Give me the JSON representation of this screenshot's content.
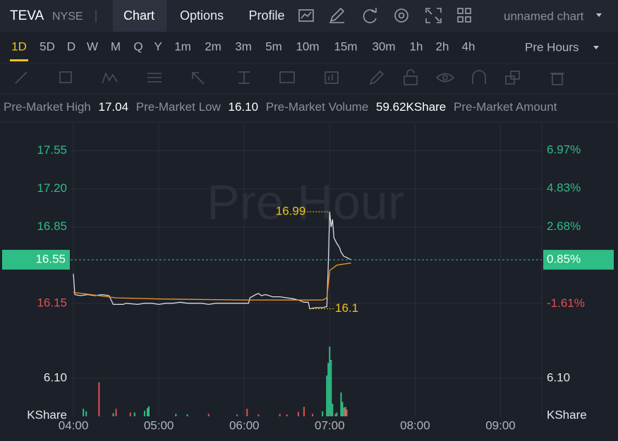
{
  "header": {
    "symbol": "TEVA",
    "exchange": "NYSE",
    "tabs": [
      "Chart",
      "Options",
      "Profile"
    ],
    "chart_name": "unnamed chart"
  },
  "periods": [
    "1D",
    "5D",
    "D",
    "W",
    "M",
    "Q",
    "Y",
    "1m",
    "2m",
    "3m",
    "5m",
    "10m",
    "15m",
    "30m",
    "1h",
    "2h",
    "4h"
  ],
  "session": "Pre Hours",
  "stats": [
    {
      "label": "Pre-Market High",
      "value": "17.04"
    },
    {
      "label": "Pre-Market Low",
      "value": "16.10"
    },
    {
      "label": "Pre-Market Volume",
      "value": "59.62KShare"
    },
    {
      "label": "Pre-Market Amount"
    }
  ],
  "chart_data": {
    "type": "line",
    "watermark": "Pre Hour",
    "xlim": [
      "03:58",
      "09:29"
    ],
    "xticks": [
      "04:00",
      "05:00",
      "06:00",
      "07:00",
      "08:00",
      "09:00"
    ],
    "ylim": [
      15.89,
      17.8
    ],
    "yticks": [
      {
        "value": 17.55,
        "label": "17.55"
      },
      {
        "value": 17.2,
        "label": "17.20"
      },
      {
        "value": 16.85,
        "label": "16.85"
      },
      16.15
    ],
    "y2lim": [
      -3.17,
      8.47
    ],
    "y2ticks": [
      {
        "value": 6.97,
        "label": "6.97%"
      },
      {
        "value": 4.83,
        "label": "4.83%"
      },
      {
        "value": 2.68,
        "label": "2.68%"
      },
      {
        "value": -1.61,
        "label": "-1.61%"
      }
    ],
    "up_color": "#2dbd85",
    "down_color": "#e0524f",
    "grid": true,
    "series": [
      {
        "color": "#d9dce3",
        "x": [
          "04:00",
          "04:01",
          "04:05",
          "04:10",
          "04:15",
          "04:20",
          "04:25",
          "04:28",
          "04:35",
          "04:37",
          "04:45",
          "04:50",
          "04:55",
          "05:00",
          "05:05",
          "05:10",
          "05:15",
          "05:20",
          "05:30",
          "05:35",
          "05:40",
          "05:50",
          "06:00",
          "06:03",
          "06:04",
          "06:08",
          "06:10",
          "06:12",
          "06:15",
          "06:20",
          "06:25",
          "06:30",
          "06:35",
          "06:38",
          "06:40",
          "06:42",
          "06:45",
          "06:46",
          "06:50",
          "06:55",
          "06:58",
          "06:59",
          "07:00",
          "07:01",
          "07:02",
          "07:03",
          "07:05",
          "07:07",
          "07:08",
          "07:10",
          "07:12",
          "07:15"
        ],
        "values": [
          16.42,
          16.23,
          16.22,
          16.23,
          16.22,
          16.23,
          16.22,
          16.14,
          16.14,
          16.15,
          16.14,
          16.15,
          16.15,
          16.14,
          16.15,
          16.15,
          16.16,
          16.15,
          16.15,
          16.14,
          16.15,
          16.15,
          16.15,
          16.15,
          16.2,
          16.23,
          16.24,
          16.22,
          16.23,
          16.21,
          16.21,
          16.2,
          16.19,
          16.18,
          16.17,
          16.16,
          16.16,
          16.1,
          16.11,
          16.11,
          16.12,
          16.5,
          16.99,
          16.85,
          16.92,
          16.75,
          16.7,
          16.66,
          16.62,
          16.58,
          16.57,
          16.55
        ]
      },
      {
        "color": "#f0932b",
        "x": [
          "04:00",
          "04:30",
          "05:00",
          "06:00",
          "06:55",
          "06:58",
          "07:00",
          "07:05",
          "07:10",
          "07:15"
        ],
        "values": [
          16.25,
          16.2,
          16.19,
          16.18,
          16.18,
          16.2,
          16.45,
          16.5,
          16.51,
          16.52
        ]
      }
    ],
    "high": {
      "x": "07:00",
      "value": 16.99
    },
    "low": {
      "x": "06:46",
      "value": 16.1
    },
    "current": {
      "value": 16.55,
      "label": "16.55",
      "change": {
        "value": 0.85,
        "label": "0.85%"
      }
    },
    "volume": {
      "unit": "KShare",
      "ylim": [
        0,
        13.5
      ],
      "yticks": [
        {
          "value": 6.1,
          "label": "6.10"
        }
      ],
      "up": {
        "x": [
          "04:07",
          "04:09",
          "04:28",
          "04:43",
          "04:50",
          "04:52",
          "04:53",
          "05:12",
          "05:20",
          "06:55",
          "06:58",
          "06:59",
          "07:00",
          "07:01",
          "07:02",
          "07:05",
          "07:08",
          "07:09",
          "07:11"
        ],
        "values": [
          1.2,
          0.8,
          0.5,
          0.6,
          0.9,
          1.3,
          1.6,
          0.4,
          0.3,
          0.8,
          6.5,
          8.5,
          11.1,
          9.0,
          2.0,
          0.6,
          3.8,
          2.3,
          1.5
        ]
      },
      "down": {
        "x": [
          "04:18",
          "04:30",
          "04:40",
          "05:35",
          "05:55",
          "06:02",
          "06:10",
          "06:25",
          "06:30",
          "06:38",
          "06:42",
          "06:48",
          "07:00",
          "07:04",
          "07:10",
          "07:12"
        ],
        "values": [
          5.4,
          1.2,
          0.6,
          0.4,
          0.3,
          1.2,
          0.3,
          0.4,
          0.3,
          0.7,
          1.5,
          0.4,
          0.5,
          0.4,
          1.4,
          1.1
        ]
      }
    }
  }
}
